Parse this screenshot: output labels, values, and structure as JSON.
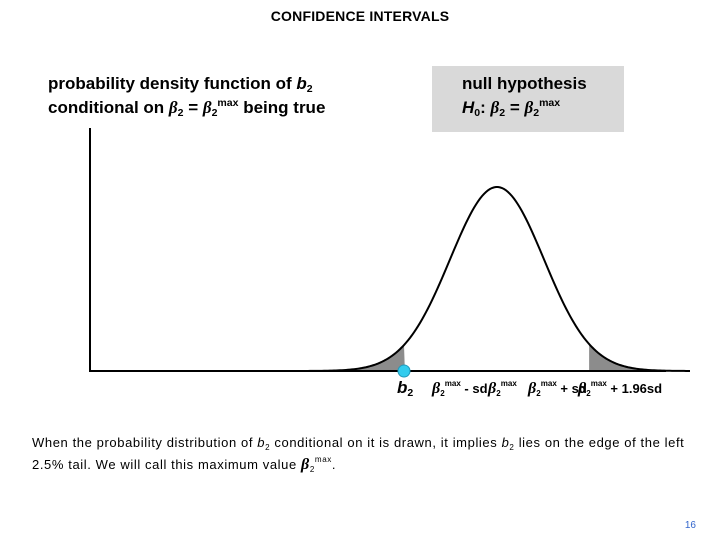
{
  "title": "CONFIDENCE INTERVALS",
  "pdf_label": {
    "line1_text": "probability density function of ",
    "line1_var": "b",
    "line1_sub": "2",
    "line2_text": "conditional on ",
    "beta": "β",
    "sub2": "2",
    "eq": " = ",
    "sup_max": "max",
    "line2_end": " being true"
  },
  "null_hypothesis": {
    "heading": "null hypothesis",
    "h": "H",
    "h_sub": "0",
    "colon": ": ",
    "beta": "β",
    "sub2": "2",
    "eq": " = ",
    "sup_max": "max"
  },
  "axis_labels": {
    "b2_var": "b",
    "b2_sub": "2",
    "beta": "β",
    "sub2": "2",
    "sup_max": "max",
    "minus_sd": " - sd",
    "plus_sd": " + sd",
    "plus_196sd": " + 1.96sd"
  },
  "caption": {
    "part1": "When the probability distribution of ",
    "b_var": "b",
    "b_sub": "2",
    "part2": " conditional on it is drawn, it implies ",
    "part3": " lies on the edge of the left 2.5% tail.  We will call this maximum value ",
    "beta": "β",
    "sub2": "2",
    "sup_max": "max",
    "end": "."
  },
  "slide_number": "16",
  "colors": {
    "curve": "#000000",
    "tail_fill": "#8c8c8c",
    "marker_fill": "#33ccee",
    "null_box": "#d9d9d9",
    "slide_number": "#3366cc"
  }
}
